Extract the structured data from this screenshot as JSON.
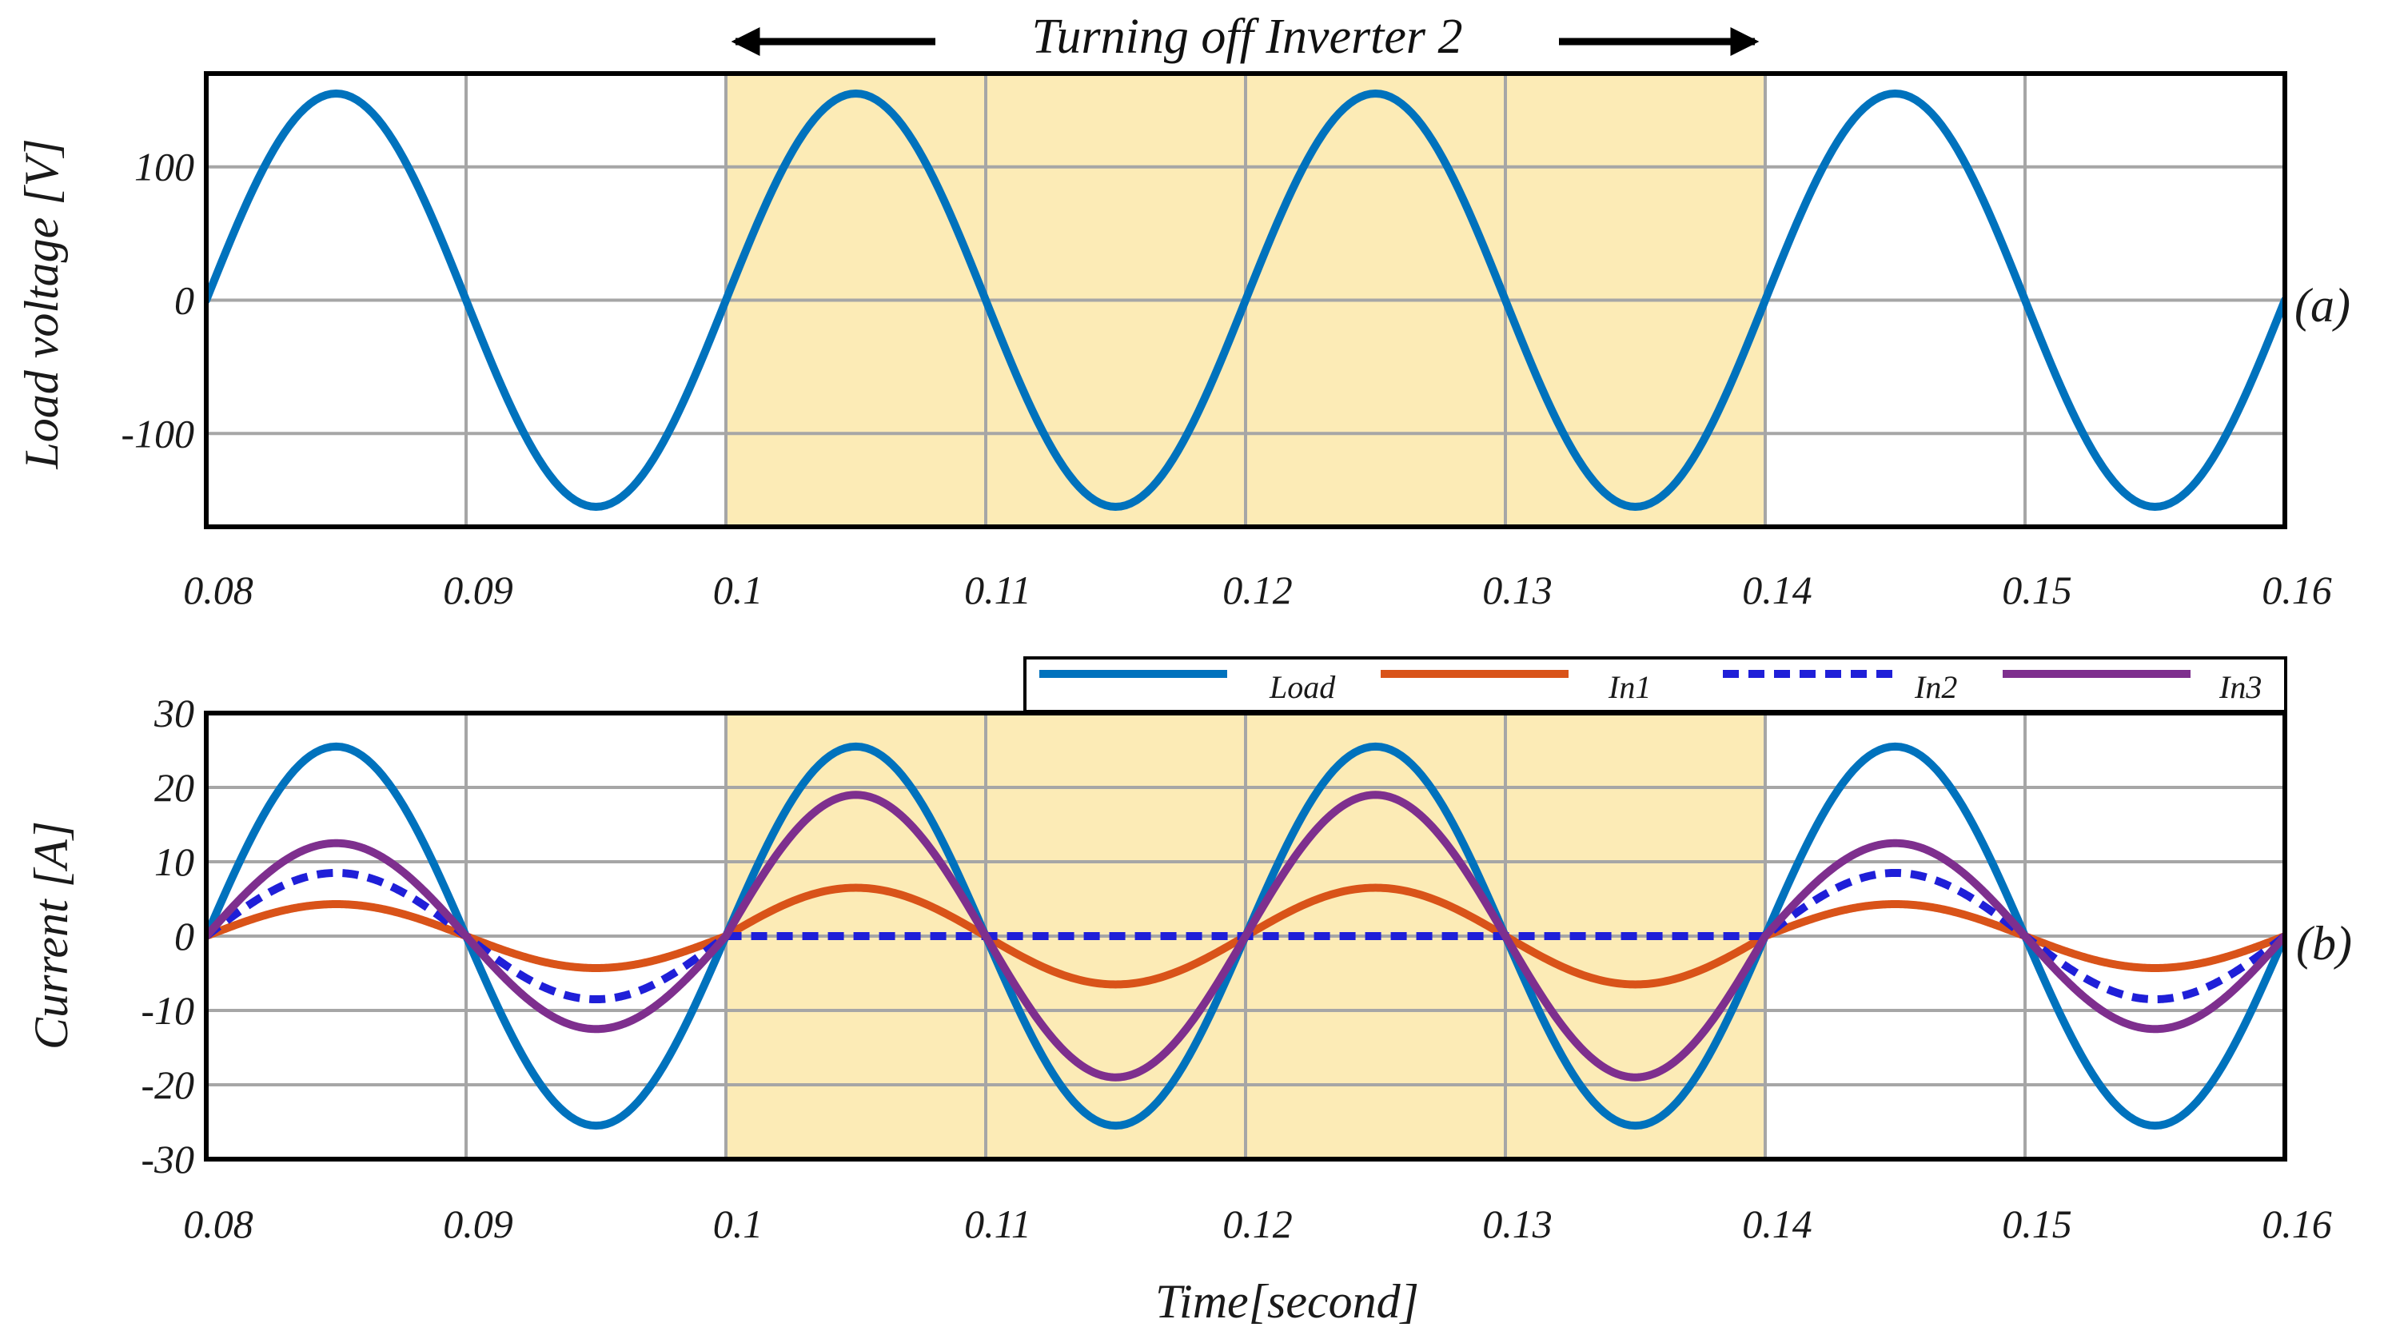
{
  "annotation": {
    "text": "Turning off Inverter 2",
    "x_start": 0.1,
    "x_end": 0.14
  },
  "colors": {
    "load": "#0072BD",
    "in1": "#D95319",
    "in2": "#1F1FD8",
    "in3": "#7E2F8E",
    "highlight": "#FCEBB6",
    "grid": "#A6A6A6"
  },
  "xlabel": "Time[second]",
  "chart_data": [
    {
      "type": "line",
      "panel_label": "(a)",
      "ylabel": "Load voltage [V]",
      "xlim": [
        0.08,
        0.16
      ],
      "ylim": [
        -170,
        170
      ],
      "x_ticks": [
        "0.08",
        "0.09",
        "0.1",
        "0.11",
        "0.12",
        "0.13",
        "0.14",
        "0.15",
        "0.16"
      ],
      "y_ticks": [
        {
          "value": 100,
          "label": "100"
        },
        {
          "value": 0,
          "label": "0"
        },
        {
          "value": -100,
          "label": "-100"
        }
      ],
      "highlight": [
        0.1,
        0.14
      ],
      "series": [
        {
          "name": "Load voltage",
          "key": "load",
          "segments": [
            {
              "x0": 0.08,
              "x1": 0.16,
              "amp": 155,
              "freq_hz": 50
            }
          ]
        }
      ]
    },
    {
      "type": "line",
      "panel_label": "(b)",
      "ylabel": "Current [A]",
      "xlim": [
        0.08,
        0.16
      ],
      "ylim": [
        -30,
        30
      ],
      "x_ticks": [
        "0.08",
        "0.09",
        "0.1",
        "0.11",
        "0.12",
        "0.13",
        "0.14",
        "0.15",
        "0.16"
      ],
      "y_ticks": [
        {
          "value": 30,
          "label": "30"
        },
        {
          "value": 20,
          "label": "20"
        },
        {
          "value": 10,
          "label": "10"
        },
        {
          "value": 0,
          "label": "0"
        },
        {
          "value": -10,
          "label": "-10"
        },
        {
          "value": -20,
          "label": "-20"
        },
        {
          "value": -30,
          "label": "-30"
        }
      ],
      "highlight": [
        0.1,
        0.14
      ],
      "legend": [
        "Load",
        "In1",
        "In2",
        "In3"
      ],
      "series": [
        {
          "name": "Load",
          "key": "load",
          "segments": [
            {
              "x0": 0.08,
              "x1": 0.16,
              "amp": 25.5,
              "freq_hz": 50
            }
          ]
        },
        {
          "name": "In1",
          "key": "in1",
          "segments": [
            {
              "x0": 0.08,
              "x1": 0.1,
              "amp": 4.3,
              "freq_hz": 50
            },
            {
              "x0": 0.1,
              "x1": 0.14,
              "amp": 6.5,
              "freq_hz": 50
            },
            {
              "x0": 0.14,
              "x1": 0.16,
              "amp": 4.3,
              "freq_hz": 50
            }
          ]
        },
        {
          "name": "In2",
          "key": "in2",
          "dashed": true,
          "segments": [
            {
              "x0": 0.08,
              "x1": 0.1,
              "amp": 8.5,
              "freq_hz": 50
            },
            {
              "x0": 0.1,
              "x1": 0.14,
              "amp": 0,
              "freq_hz": 50
            },
            {
              "x0": 0.14,
              "x1": 0.16,
              "amp": 8.5,
              "freq_hz": 50
            }
          ]
        },
        {
          "name": "In3",
          "key": "in3",
          "segments": [
            {
              "x0": 0.08,
              "x1": 0.1,
              "amp": 12.5,
              "freq_hz": 50
            },
            {
              "x0": 0.1,
              "x1": 0.14,
              "amp": 19,
              "freq_hz": 50
            },
            {
              "x0": 0.14,
              "x1": 0.16,
              "amp": 12.5,
              "freq_hz": 50
            }
          ]
        }
      ]
    }
  ]
}
